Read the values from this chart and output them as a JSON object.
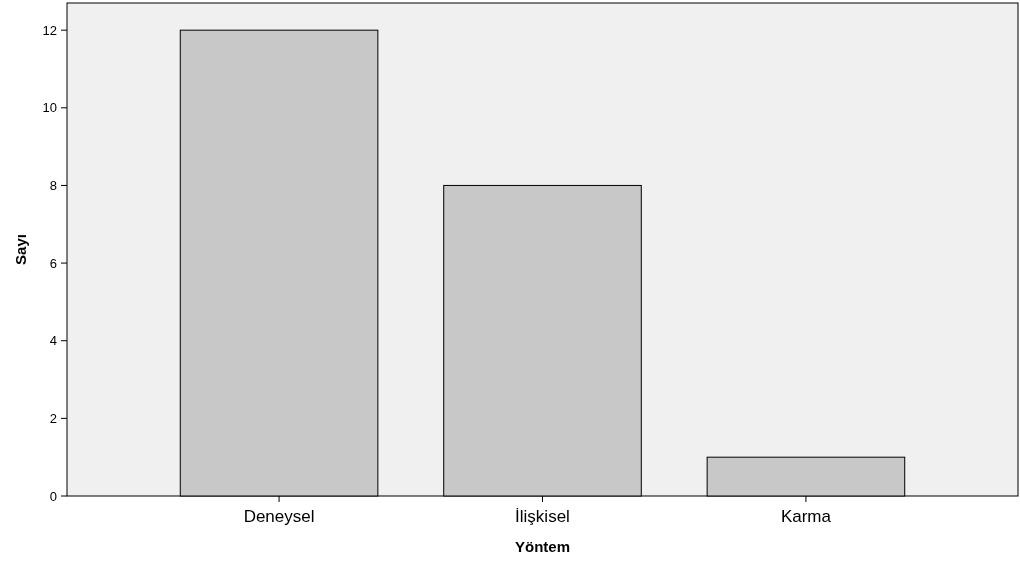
{
  "chart_data": {
    "type": "bar",
    "xlabel": "Yöntem",
    "ylabel": "Sayı",
    "categories": [
      "Deneysel",
      "İlişkisel",
      "Karma"
    ],
    "values": [
      12,
      8,
      1
    ],
    "color": "#c8c8c8",
    "ylim": [
      0,
      12.7
    ],
    "yticks": [
      0,
      2,
      4,
      6,
      8,
      10,
      12
    ],
    "grid": false
  }
}
